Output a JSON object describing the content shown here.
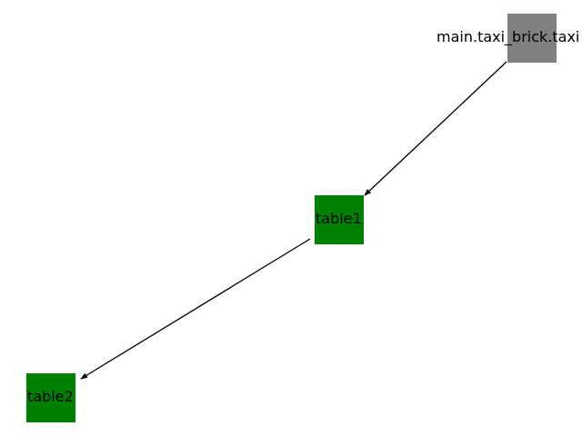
{
  "graph": {
    "nodes": [
      {
        "id": "source",
        "label": "main.taxi_brick.taxi",
        "color": "#808080"
      },
      {
        "id": "table1",
        "label": "table1",
        "color": "#008000"
      },
      {
        "id": "table2",
        "label": "table2",
        "color": "#008000"
      }
    ],
    "edges": [
      {
        "from": "main.taxi_brick.taxi",
        "to": "table1"
      },
      {
        "from": "table1",
        "to": "table2"
      }
    ],
    "edge_color": "#000000"
  }
}
